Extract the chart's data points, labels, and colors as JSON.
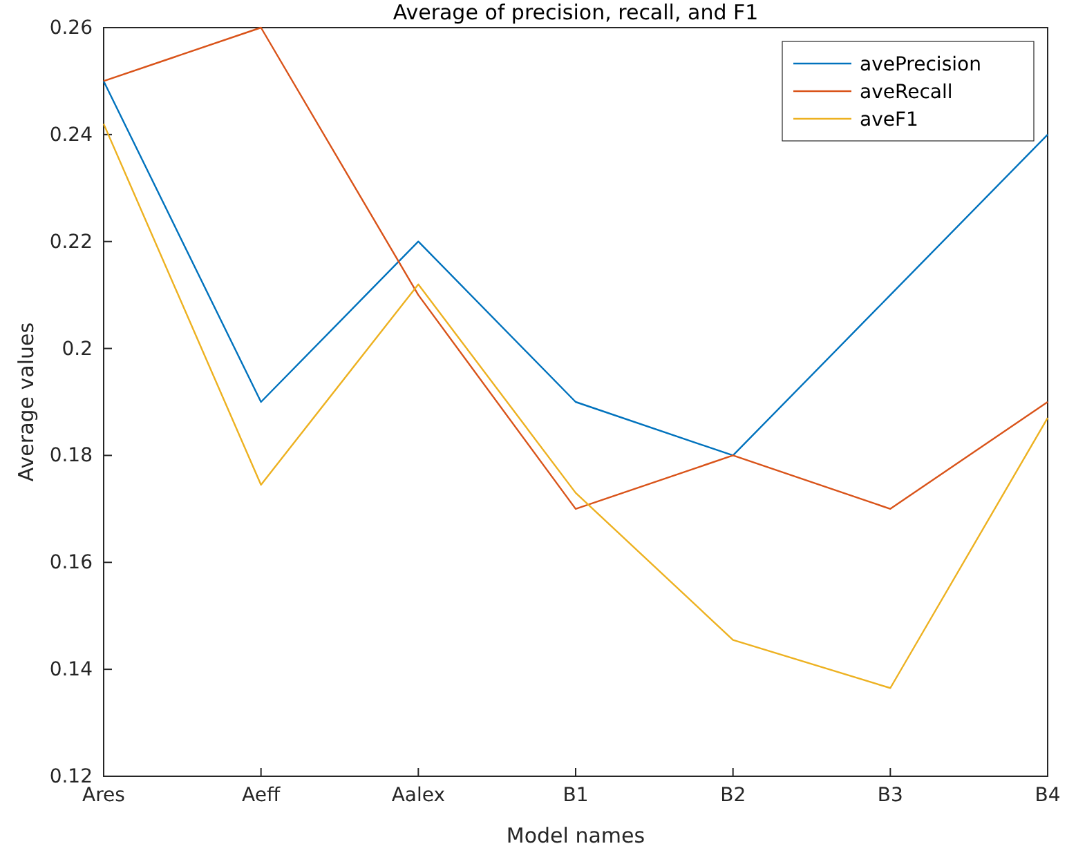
{
  "chart_data": {
    "type": "line",
    "title": "Average of precision, recall, and F1",
    "xlabel": "Model names",
    "ylabel": "Average values",
    "categories": [
      "Ares",
      "Aeff",
      "Aalex",
      "B1",
      "B2",
      "B3",
      "B4"
    ],
    "series": [
      {
        "name": "avePrecision",
        "color": "#0072bd",
        "values": [
          0.25,
          0.19,
          0.22,
          0.19,
          0.18,
          0.21,
          0.24
        ]
      },
      {
        "name": "aveRecall",
        "color": "#d95319",
        "values": [
          0.25,
          0.26,
          0.21,
          0.17,
          0.18,
          0.17,
          0.19
        ]
      },
      {
        "name": "aveF1",
        "color": "#edb120",
        "values": [
          0.242,
          0.1745,
          0.212,
          0.173,
          0.1455,
          0.1365,
          0.187
        ]
      }
    ],
    "ylim": [
      0.12,
      0.26
    ],
    "yticks": [
      0.12,
      0.14,
      0.16,
      {
        "value": 0.18,
        "label": "0.18"
      },
      0.2,
      0.22,
      0.24,
      0.26
    ],
    "grid": false,
    "legend": "top right",
    "marker": "none",
    "line_style": "solid"
  }
}
